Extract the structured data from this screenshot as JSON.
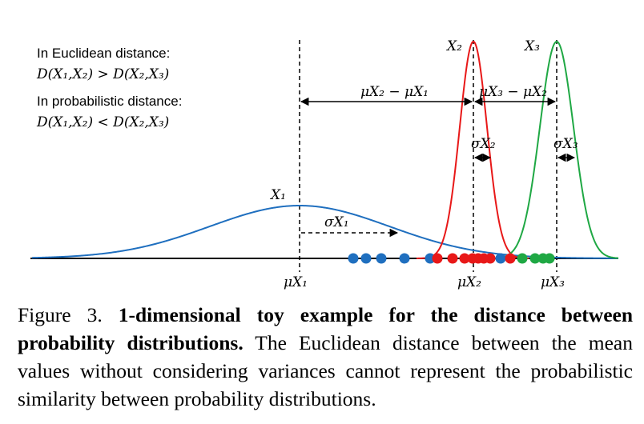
{
  "legend_text": {
    "euclid_label": "In Euclidean distance:",
    "euclid_formula": "D(X₁,X₂) > D(X₂,X₃)",
    "prob_label": "In probabilistic distance:",
    "prob_formula": "D(X₁,X₂) < D(X₂,X₃)"
  },
  "curves": {
    "x1": "X₁",
    "x2": "X₂",
    "x3": "X₃"
  },
  "means": {
    "mu1": "μX₁",
    "mu2": "μX₂",
    "mu3": "μX₃"
  },
  "differences": {
    "d21": "μX₂ − μX₁",
    "d32": "μX₃ − μX₂"
  },
  "sigmas": {
    "s1": "σX₁",
    "s2": "σX₂",
    "s3": "σX₃"
  },
  "caption": {
    "label": "Figure 3.",
    "title": "1-dimensional toy example for the distance between probability distributions.",
    "body": "The Euclidean distance between the mean values without considering variances cannot represent the probabilistic similarity between probability distributions."
  }
}
